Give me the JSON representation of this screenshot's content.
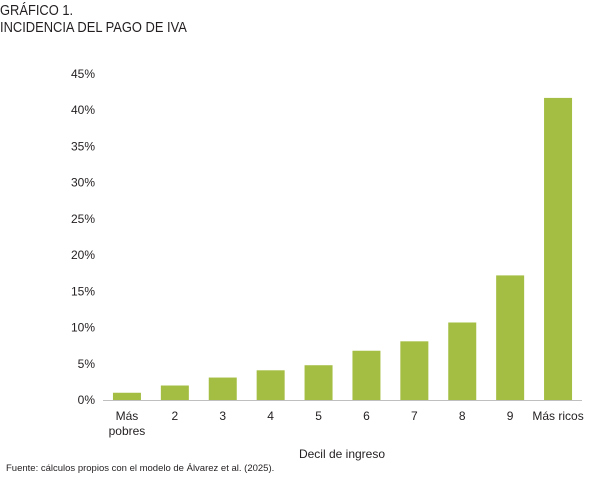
{
  "header": {
    "title_line1": "GRÁFICO 1.",
    "title_line2": "INCIDENCIA DEL PAGO DE IVA"
  },
  "chart_data": {
    "type": "bar",
    "categories": [
      "Más pobres",
      "2",
      "3",
      "4",
      "5",
      "6",
      "7",
      "8",
      "9",
      "Más ricos"
    ],
    "values": [
      1.0,
      2.0,
      3.1,
      4.1,
      4.8,
      6.8,
      8.1,
      10.7,
      17.2,
      41.7
    ],
    "xlabel": "Decil de ingreso",
    "ylabel": "",
    "ylim": [
      0,
      45
    ],
    "yticks": [
      "0%",
      "5%",
      "10%",
      "15%",
      "20%",
      "25%",
      "30%",
      "35%",
      "40%",
      "45%"
    ],
    "grid": false,
    "bar_color": "#a4be43"
  },
  "footer": {
    "source": "Fuente: cálculos propios con el modelo de Álvarez et al. (2025)."
  }
}
